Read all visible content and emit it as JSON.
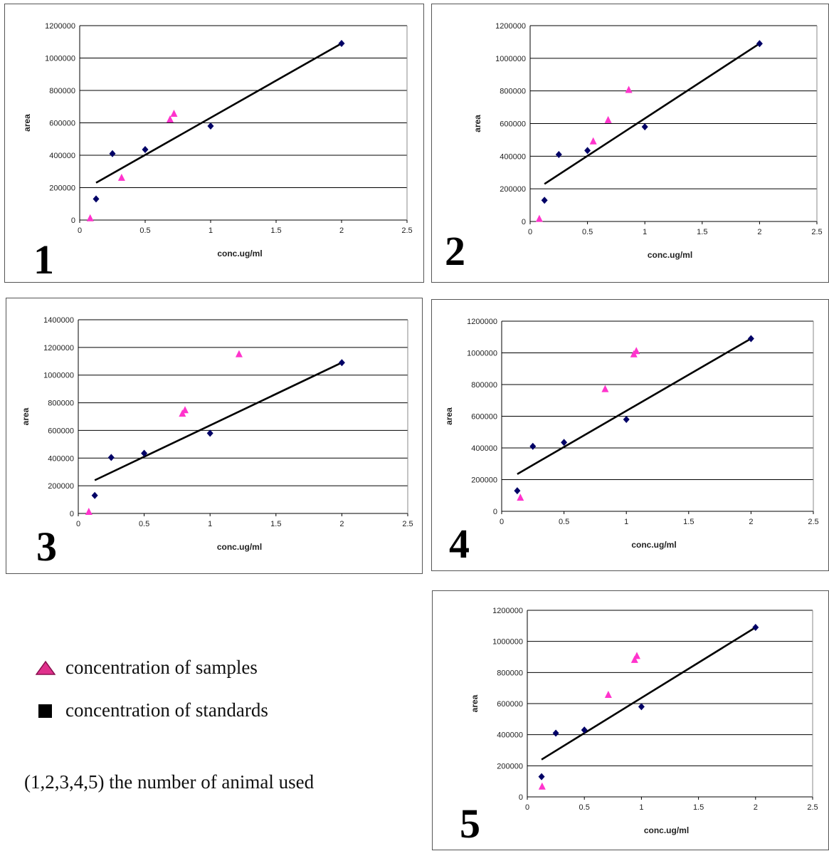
{
  "legend": {
    "samples_label": "concentration of samples",
    "standards_label": "concentration of standards",
    "samples_color": "#ff33cc",
    "standards_color": "#000066"
  },
  "note": "(1,2,3,4,5) the number of animal used",
  "chart_data": [
    {
      "type": "scatter",
      "panel_number": "1",
      "xlabel": "conc.ug/ml",
      "ylabel": "area",
      "xlim": [
        0,
        2.5
      ],
      "ylim": [
        0,
        1200000
      ],
      "xticks": [
        "0",
        "0.5",
        "1",
        "1.5",
        "2",
        "2.5"
      ],
      "yticks": [
        "0",
        "200000",
        "400000",
        "600000",
        "800000",
        "1000000",
        "1200000"
      ],
      "grid": "horizontal",
      "standards": [
        [
          0.125,
          130000
        ],
        [
          0.25,
          410000
        ],
        [
          0.5,
          435000
        ],
        [
          1,
          580000
        ],
        [
          2,
          1090000
        ]
      ],
      "samples": [
        [
          0.08,
          10000
        ],
        [
          0.32,
          260000
        ],
        [
          0.69,
          620000
        ],
        [
          0.72,
          655000
        ]
      ],
      "trendline": [
        [
          0.125,
          230000
        ],
        [
          2,
          1090000
        ]
      ]
    },
    {
      "type": "scatter",
      "panel_number": "2",
      "xlabel": "conc.ug/ml",
      "ylabel": "area",
      "xlim": [
        0,
        2.5
      ],
      "ylim": [
        0,
        1200000
      ],
      "xticks": [
        "0",
        "0.5",
        "1",
        "1.5",
        "2",
        "2.5"
      ],
      "yticks": [
        "0",
        "200000",
        "400000",
        "600000",
        "800000",
        "1000000",
        "1200000"
      ],
      "grid": "horizontal",
      "standards": [
        [
          0.125,
          130000
        ],
        [
          0.25,
          410000
        ],
        [
          0.5,
          435000
        ],
        [
          1,
          580000
        ],
        [
          2,
          1090000
        ]
      ],
      "samples": [
        [
          0.08,
          15000
        ],
        [
          0.55,
          490000
        ],
        [
          0.68,
          620000
        ],
        [
          0.86,
          805000
        ]
      ],
      "trendline": [
        [
          0.125,
          230000
        ],
        [
          2,
          1090000
        ]
      ]
    },
    {
      "type": "scatter",
      "panel_number": "3",
      "xlabel": "conc.ug/ml",
      "ylabel": "area",
      "xlim": [
        0,
        2.5
      ],
      "ylim": [
        0,
        1400000
      ],
      "xticks": [
        "0",
        "0.5",
        "1",
        "1.5",
        "2",
        "2.5"
      ],
      "yticks": [
        "0",
        "200000",
        "400000",
        "600000",
        "800000",
        "1000000",
        "1200000",
        "1400000"
      ],
      "grid": "horizontal",
      "standards": [
        [
          0.125,
          130000
        ],
        [
          0.25,
          405000
        ],
        [
          0.5,
          435000
        ],
        [
          1,
          580000
        ],
        [
          2,
          1090000
        ]
      ],
      "samples": [
        [
          0.08,
          10000
        ],
        [
          0.79,
          720000
        ],
        [
          0.81,
          745000
        ],
        [
          1.22,
          1150000
        ]
      ],
      "trendline": [
        [
          0.125,
          240000
        ],
        [
          2,
          1090000
        ]
      ]
    },
    {
      "type": "scatter",
      "panel_number": "4",
      "xlabel": "conc.ug/ml",
      "ylabel": "area",
      "xlim": [
        0,
        2.5
      ],
      "ylim": [
        0,
        1200000
      ],
      "xticks": [
        "0",
        "0.5",
        "1",
        "1.5",
        "2",
        "2.5"
      ],
      "yticks": [
        "0",
        "200000",
        "400000",
        "600000",
        "800000",
        "1000000",
        "1200000"
      ],
      "grid": "horizontal",
      "standards": [
        [
          0.125,
          130000
        ],
        [
          0.25,
          410000
        ],
        [
          0.5,
          435000
        ],
        [
          1,
          580000
        ],
        [
          2,
          1090000
        ]
      ],
      "samples": [
        [
          0.15,
          85000
        ],
        [
          0.83,
          770000
        ],
        [
          1.06,
          990000
        ],
        [
          1.08,
          1010000
        ]
      ],
      "trendline": [
        [
          0.125,
          235000
        ],
        [
          2,
          1090000
        ]
      ]
    },
    {
      "type": "scatter",
      "panel_number": "5",
      "xlabel": "conc.ug/ml",
      "ylabel": "area",
      "xlim": [
        0,
        2.5
      ],
      "ylim": [
        0,
        1200000
      ],
      "xticks": [
        "0",
        "0.5",
        "1",
        "1.5",
        "2",
        "2.5"
      ],
      "yticks": [
        "0",
        "200000",
        "400000",
        "600000",
        "800000",
        "1000000",
        "1200000"
      ],
      "grid": "horizontal",
      "standards": [
        [
          0.125,
          130000
        ],
        [
          0.25,
          410000
        ],
        [
          0.5,
          430000
        ],
        [
          1,
          580000
        ],
        [
          2,
          1090000
        ]
      ],
      "samples": [
        [
          0.13,
          65000
        ],
        [
          0.71,
          655000
        ],
        [
          0.94,
          880000
        ],
        [
          0.96,
          905000
        ]
      ],
      "trendline": [
        [
          0.125,
          240000
        ],
        [
          2,
          1090000
        ]
      ]
    }
  ]
}
